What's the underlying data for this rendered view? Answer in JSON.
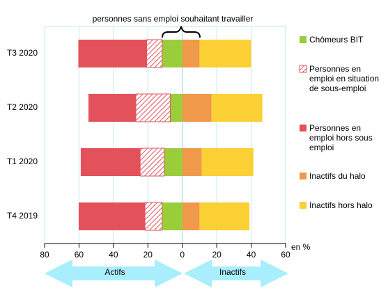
{
  "chart_data": {
    "type": "diverging-stacked-bar",
    "categories": [
      "T3 2020",
      "T2 2020",
      "T1 2020",
      "T4 2019"
    ],
    "series": [
      {
        "name": "Chômeurs BIT",
        "color": "#9acd3a",
        "values": [
          -11.7,
          -7,
          -10.5,
          -11.7
        ]
      },
      {
        "name": "Personnes en emploi en situation de sous-emploi",
        "color": "#e3525a",
        "hatch": true,
        "values": [
          -9,
          -20,
          -14,
          -10
        ]
      },
      {
        "name": "Personnes en emploi hors sous emploi",
        "color": "#e3525a",
        "values": [
          -39.7,
          -27.5,
          -34.5,
          -38.5
        ]
      },
      {
        "name": "Inactifs du halo",
        "color": "#f0994a",
        "values": [
          10,
          17,
          11.3,
          10
        ]
      },
      {
        "name": "Inactifs hors halo",
        "color": "#fbd034",
        "values": [
          30,
          29.5,
          30,
          29
        ]
      }
    ],
    "xlim": [
      -80,
      60
    ],
    "xticks": [
      {
        "value": -80,
        "label": "80"
      },
      {
        "value": -60,
        "label": "60"
      },
      {
        "value": -40,
        "label": "40"
      },
      {
        "value": -20,
        "label": "20"
      },
      0,
      20,
      40,
      60
    ],
    "grid": true,
    "x_unit": "en %",
    "annotation": "personnes sans emploi souhaitant travailler",
    "left_arrow_label": "Actifs",
    "right_arrow_label": "Inactifs"
  }
}
